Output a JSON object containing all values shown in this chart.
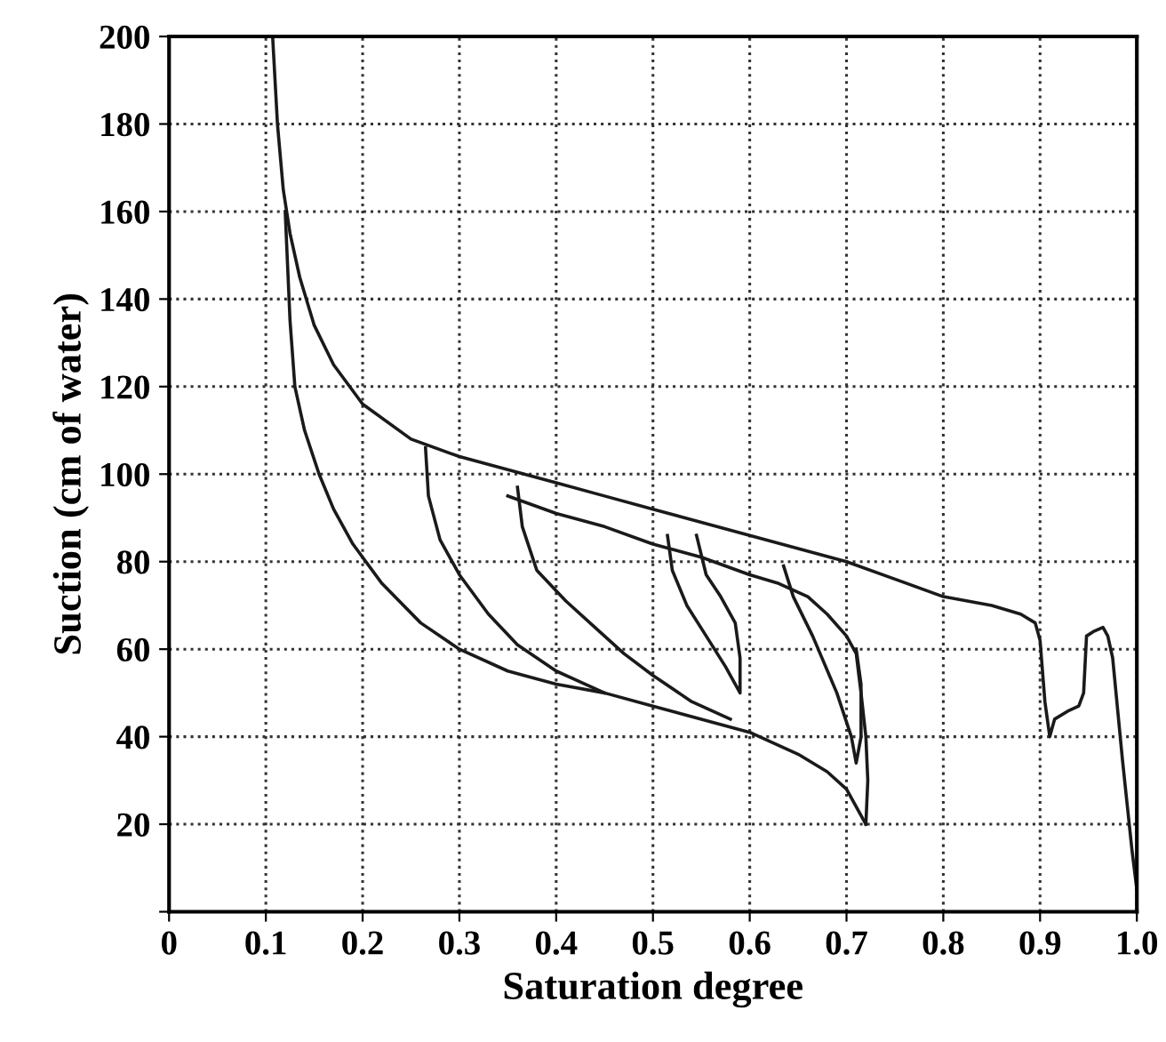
{
  "chart_data": {
    "type": "line",
    "xlabel": "Saturation degree",
    "ylabel": "Suction (cm of water)",
    "xlim": [
      0,
      1.0
    ],
    "ylim": [
      0,
      200
    ],
    "xticks": [
      0,
      0.1,
      0.2,
      0.3,
      0.4,
      0.5,
      0.6,
      0.7,
      0.8,
      {
        "value": 0.9,
        "label": "0.9"
      },
      {
        "value": 1.0,
        "label": "1.0"
      }
    ],
    "yticks": [
      {
        "value": 0,
        "label": null
      },
      20,
      40,
      60,
      80,
      100,
      120,
      140,
      160,
      180,
      200
    ],
    "grid": true,
    "marker": "none",
    "line_style": "solid",
    "series": [
      {
        "color": "#1a1a1a",
        "x": [
          1.0,
          0.995,
          0.985,
          0.975,
          0.97,
          0.965,
          0.955,
          0.948,
          0.945,
          0.94,
          0.93,
          0.915,
          0.91,
          0.905,
          0.9,
          0.895,
          0.88,
          0.85,
          0.8,
          0.75,
          0.7,
          0.65,
          0.6,
          0.55,
          0.5,
          0.45,
          0.4,
          0.35,
          0.3,
          0.25,
          0.2,
          0.17,
          0.15,
          0.135,
          0.125,
          0.118,
          0.112,
          0.107
        ],
        "values": [
          5,
          14,
          35,
          58,
          63,
          65,
          64,
          63,
          50,
          47,
          46,
          44,
          40,
          48,
          62,
          66,
          68,
          70,
          72,
          76,
          80,
          83,
          86,
          89,
          92,
          95,
          98,
          101,
          104,
          108,
          116,
          125,
          134,
          145,
          155,
          165,
          180,
          200
        ]
      },
      {
        "color": "#1a1a1a",
        "x": [
          0.12,
          0.125,
          0.13,
          0.14,
          0.155,
          0.17,
          0.19,
          0.22,
          0.26,
          0.3,
          0.35,
          0.4,
          0.45,
          0.5,
          0.55,
          0.6,
          0.65,
          0.68,
          0.7,
          0.71,
          0.72
        ],
        "values": [
          160,
          135,
          120,
          110,
          100,
          92,
          84,
          75,
          66,
          60,
          55,
          52,
          50,
          47,
          44,
          41,
          36,
          32,
          28,
          24,
          20
        ]
      },
      {
        "color": "#1a1a1a",
        "x": [
          0.72,
          0.722,
          0.72,
          0.715,
          0.71,
          0.7,
          0.68,
          0.66,
          0.63,
          0.6,
          0.55,
          0.5,
          0.45,
          0.4,
          0.35
        ],
        "values": [
          20,
          30,
          40,
          50,
          59,
          63,
          68,
          72,
          75,
          77,
          81,
          84,
          88,
          91,
          95
        ]
      },
      {
        "color": "#1a1a1a",
        "x": [
          0.265,
          0.268,
          0.28,
          0.3,
          0.33,
          0.36,
          0.4,
          0.45
        ],
        "values": [
          106,
          95,
          85,
          77,
          68,
          61,
          55,
          50
        ]
      },
      {
        "color": "#1a1a1a",
        "x": [
          0.36,
          0.365,
          0.38,
          0.41,
          0.44,
          0.47,
          0.5,
          0.54,
          0.58
        ],
        "values": [
          97,
          88,
          78,
          71,
          65,
          59,
          54,
          48,
          44
        ]
      },
      {
        "color": "#1a1a1a",
        "x": [
          0.515,
          0.52,
          0.535,
          0.555,
          0.575,
          0.59,
          0.59,
          0.585,
          0.57,
          0.555,
          0.545
        ],
        "values": [
          86,
          78,
          70,
          63,
          56,
          50,
          58,
          66,
          72,
          77,
          86
        ]
      },
      {
        "color": "#1a1a1a",
        "x": [
          0.635,
          0.645,
          0.665,
          0.69,
          0.705,
          0.71,
          0.715,
          0.715,
          0.71
        ],
        "values": [
          79,
          72,
          63,
          50,
          40,
          34,
          40,
          52,
          60
        ]
      }
    ]
  }
}
